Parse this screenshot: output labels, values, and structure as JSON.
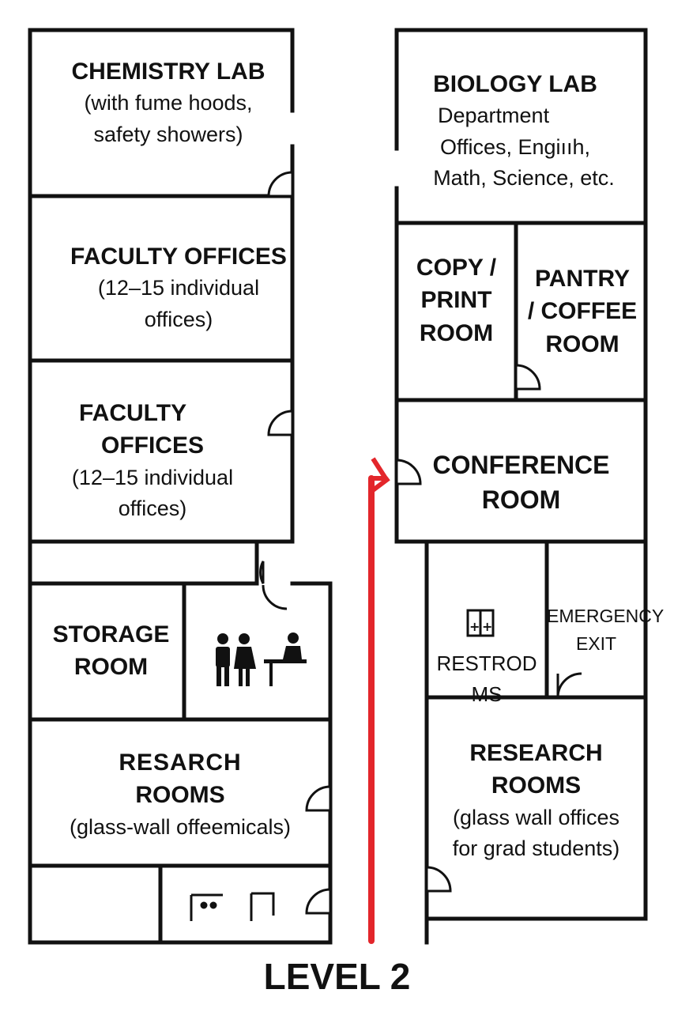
{
  "title": "LEVEL 2",
  "colors": {
    "route": "#e3262b",
    "wall": "#111111"
  },
  "rooms": {
    "chemistry_lab": {
      "name": "CHEMISTRY LAB",
      "detail1": "(with fume hoods,",
      "detail2": "safety showers)"
    },
    "biology_lab": {
      "name": "BIOLOGY LAB",
      "line2": "Department",
      "line3": "Offices, Engiııh,",
      "line4": "Math, Science, etc."
    },
    "faculty_offices_a": {
      "name": "FACULTY OFFICES",
      "detail1": "(12–15 individual",
      "detail2": "offices)"
    },
    "faculty_offices_b": {
      "name1": "FACULTY  ",
      "name2": "OFFICES",
      "detail1": "(12–15 individual",
      "detail2": "offices)"
    },
    "copy_print": {
      "l1": "COPY /",
      "l2": "PRINT",
      "l3": "ROOM"
    },
    "pantry": {
      "l1": "PANTRY",
      "l2": "/ COFFEE",
      "l3": "ROOM"
    },
    "conference": {
      "l1": "CONFERENCE",
      "l2": "ROOM"
    },
    "storage": {
      "l1": "STORAGE",
      "l2": "ROOM"
    },
    "restrooms": {
      "l1": "RESTROD",
      "l2": "MS"
    },
    "emergency": {
      "l1": "EMERGENCY",
      "l2": "EXIT"
    },
    "research_left": {
      "l1": "RESARCH",
      "l2": "ROOMS",
      "l3": "(glass-wall offeemicals)"
    },
    "research_right": {
      "l1": "RESEARCH",
      "l2": "ROOMS",
      "l3": "(glass wall offices",
      "l4": "for grad students)"
    }
  },
  "icons": [
    "people-at-desk-icon",
    "restroom-sign-icon",
    "bottom-restroom-sign-icon"
  ]
}
